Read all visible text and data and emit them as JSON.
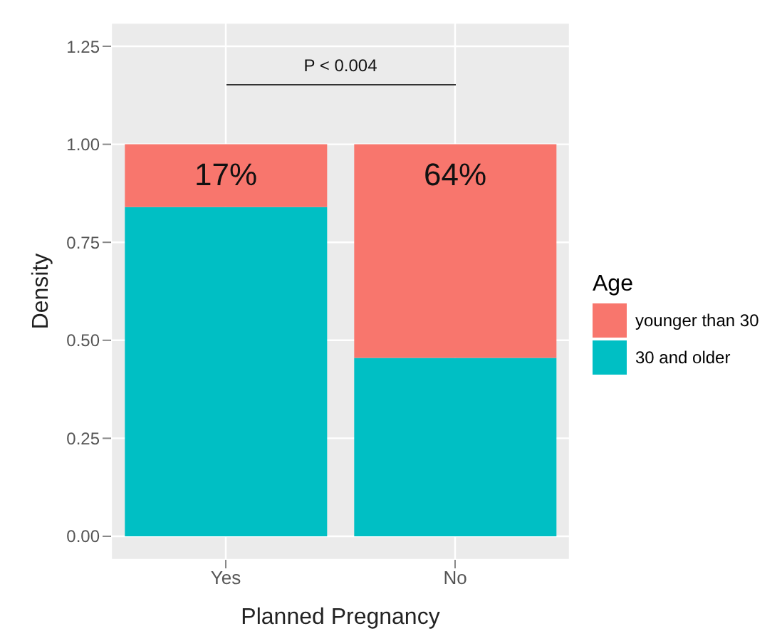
{
  "chart_data": {
    "type": "bar",
    "stacked": true,
    "xlabel": "Planned Pregnancy",
    "ylabel": "Density",
    "legend_title": "Age",
    "legend": "right",
    "grid": true,
    "categories": [
      "Yes",
      "No"
    ],
    "series": [
      {
        "name": "30 and older",
        "color": "#00bfc4",
        "values": [
          0.84,
          0.455
        ]
      },
      {
        "name": "younger than 30",
        "color": "#f8766d",
        "values": [
          0.16,
          0.545
        ]
      }
    ],
    "ylim": [
      -0.06,
      1.31
    ],
    "yticks": [
      {
        "value": 0,
        "label": "0.00"
      },
      {
        "value": 0.25,
        "label": "0.25"
      },
      {
        "value": 0.5,
        "label": "0.50"
      },
      {
        "value": 0.75,
        "label": "0.75"
      },
      {
        "value": 1,
        "label": "1.00"
      },
      {
        "value": 1.25,
        "label": "1.25"
      }
    ],
    "annotations": [
      "P < 0.004",
      {
        "text": "17%",
        "x": "Yes",
        "y": 1
      },
      {
        "text": "64%",
        "x": "No",
        "y": 1
      }
    ]
  }
}
